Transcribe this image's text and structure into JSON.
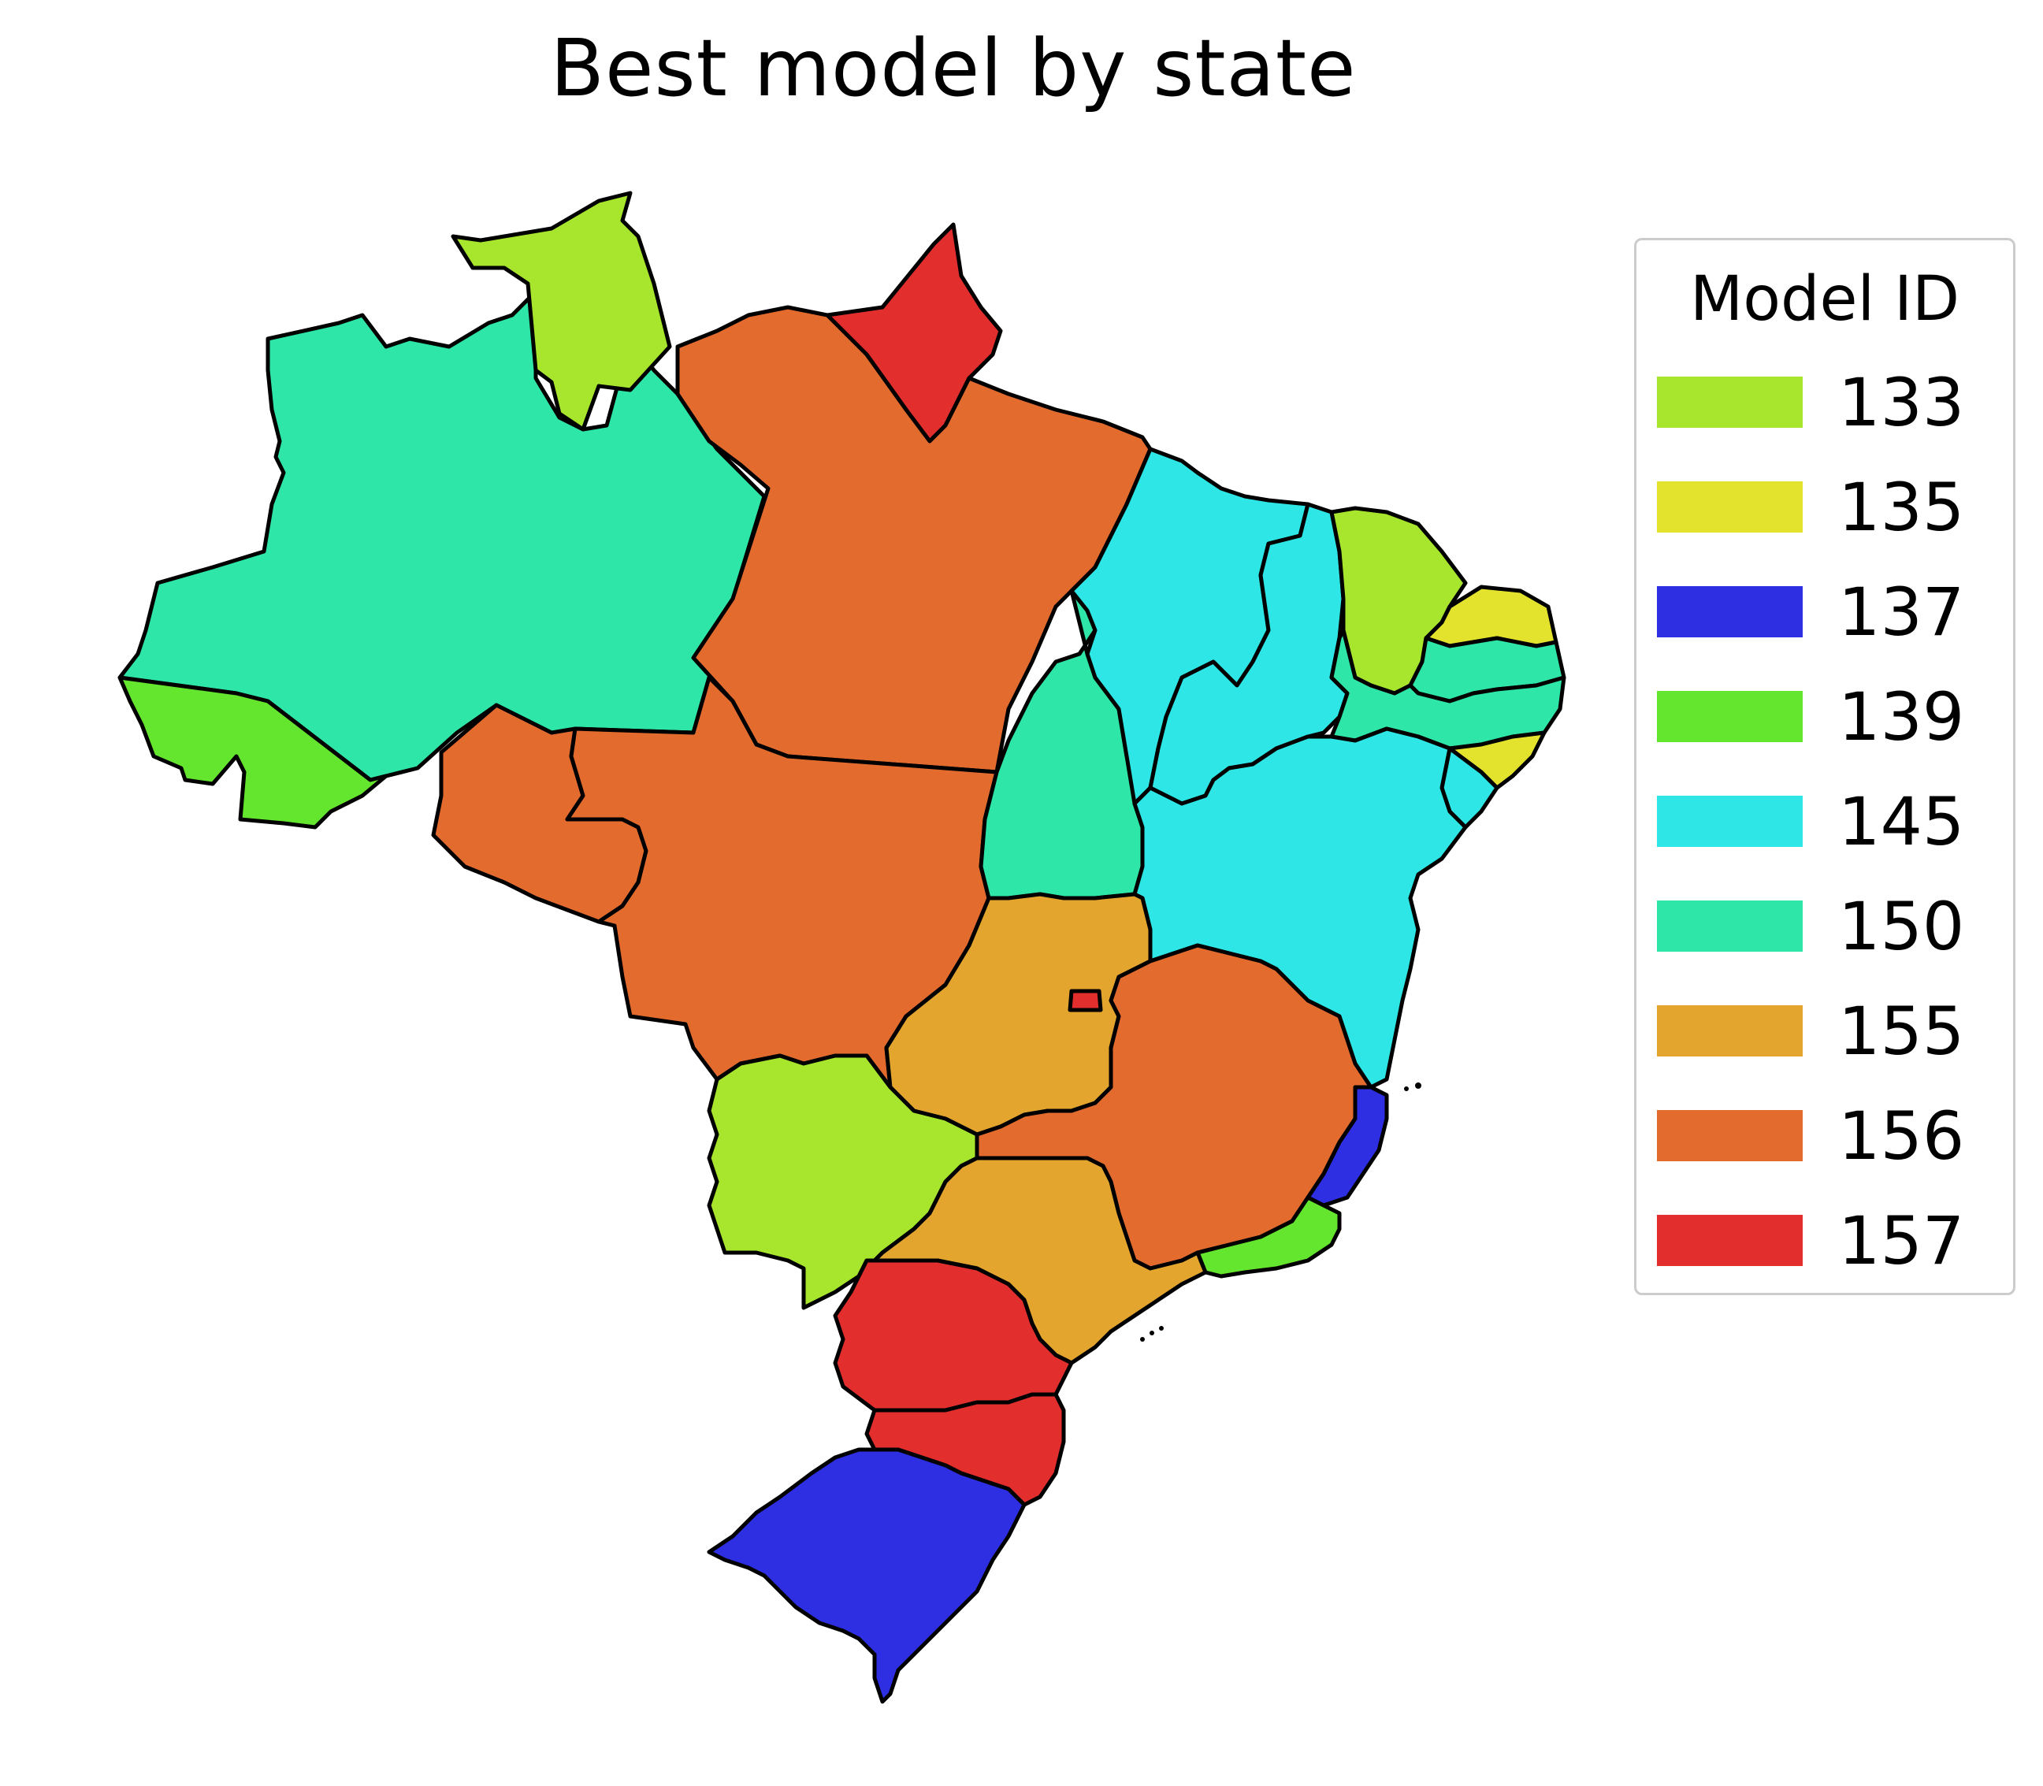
{
  "title": "Best model by state",
  "legend": {
    "title": "Model ID",
    "items": [
      {
        "label": "133",
        "color": "#a8e62e"
      },
      {
        "label": "135",
        "color": "#e3e32e"
      },
      {
        "label": "137",
        "color": "#2e2ee3"
      },
      {
        "label": "139",
        "color": "#65e62e"
      },
      {
        "label": "145",
        "color": "#2ee6e6"
      },
      {
        "label": "150",
        "color": "#2ee6a8"
      },
      {
        "label": "155",
        "color": "#e3a52e"
      },
      {
        "label": "156",
        "color": "#e36b2e"
      },
      {
        "label": "157",
        "color": "#e32e2e"
      }
    ]
  },
  "chart_data": {
    "type": "choropleth",
    "title": "Best model by state",
    "legend_title": "Model ID",
    "legend_position": "right",
    "states": [
      {
        "state": "AM",
        "model_id": "150"
      },
      {
        "state": "RR",
        "model_id": "133"
      },
      {
        "state": "AP",
        "model_id": "157"
      },
      {
        "state": "PA",
        "model_id": "156"
      },
      {
        "state": "AC",
        "model_id": "139"
      },
      {
        "state": "RO",
        "model_id": "156"
      },
      {
        "state": "MT",
        "model_id": "156"
      },
      {
        "state": "TO",
        "model_id": "150"
      },
      {
        "state": "MA",
        "model_id": "145"
      },
      {
        "state": "PI",
        "model_id": "145"
      },
      {
        "state": "CE",
        "model_id": "133"
      },
      {
        "state": "RN",
        "model_id": "135"
      },
      {
        "state": "PB",
        "model_id": "150"
      },
      {
        "state": "PE",
        "model_id": "150"
      },
      {
        "state": "AL",
        "model_id": "135"
      },
      {
        "state": "SE",
        "model_id": "145"
      },
      {
        "state": "BA",
        "model_id": "145"
      },
      {
        "state": "GO",
        "model_id": "155"
      },
      {
        "state": "DF",
        "model_id": "157"
      },
      {
        "state": "MG",
        "model_id": "156"
      },
      {
        "state": "ES",
        "model_id": "137"
      },
      {
        "state": "RJ",
        "model_id": "139"
      },
      {
        "state": "MS",
        "model_id": "133"
      },
      {
        "state": "SP",
        "model_id": "155"
      },
      {
        "state": "PR",
        "model_id": "157"
      },
      {
        "state": "SC",
        "model_id": "157"
      },
      {
        "state": "RS",
        "model_id": "137"
      }
    ]
  }
}
